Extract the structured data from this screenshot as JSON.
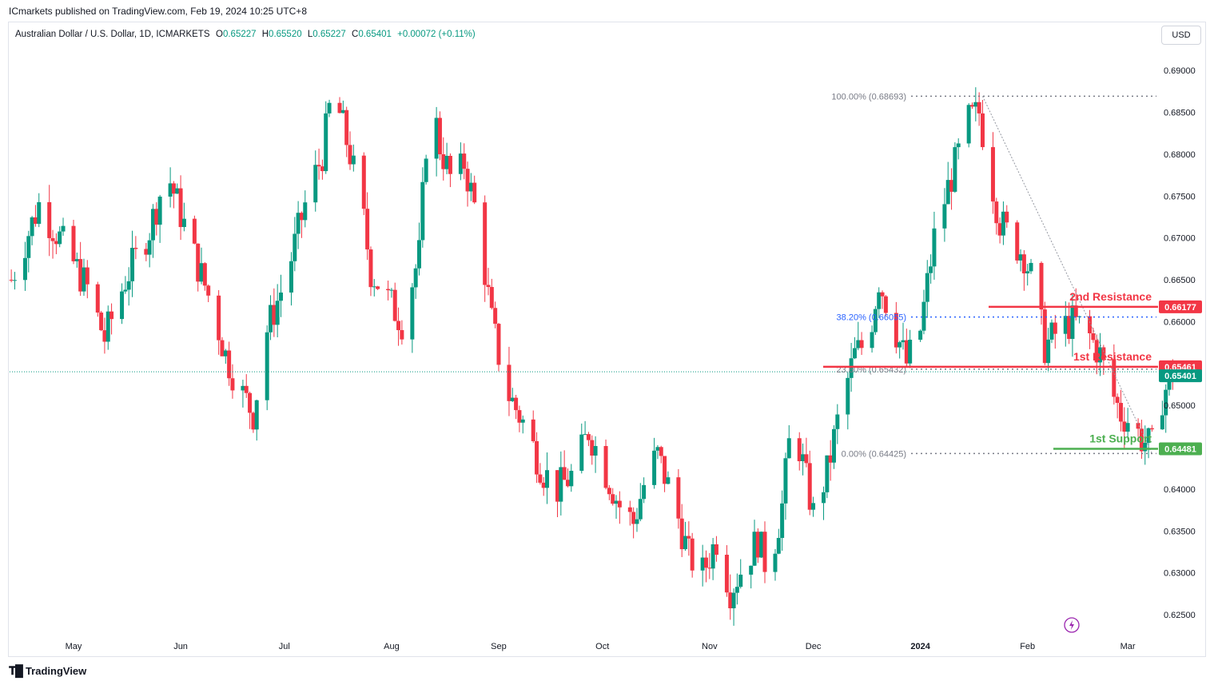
{
  "publisher": {
    "text": "ICmarkets published on TradingView.com, Feb 19, 2024 10:25 UTC+8"
  },
  "header": {
    "symbol": "Australian Dollar / U.S. Dollar, 1D, ICMARKETS",
    "o_label": "O",
    "o_value": "0.65227",
    "h_label": "H",
    "h_value": "0.65520",
    "l_label": "L",
    "l_value": "0.65227",
    "c_label": "C",
    "c_value": "0.65401",
    "change": "+0.00072 (+0.11%)",
    "currency": "USD"
  },
  "footer": {
    "brand": "TradingView",
    "brand_icon": "tradingview-logo-icon"
  },
  "chart_data": {
    "type": "candlestick",
    "symbol": "AUDUSD",
    "timeframe": "1D",
    "ylim": [
      0.623,
      0.6925
    ],
    "y_ticks": [
      "0.69000",
      "0.68500",
      "0.68000",
      "0.67500",
      "0.67000",
      "0.66500",
      "0.66000",
      "0.65500",
      "0.65000",
      "0.64500",
      "0.64000",
      "0.63500",
      "0.63000",
      "0.62500"
    ],
    "x_labels": [
      {
        "label": "May",
        "day": 0
      },
      {
        "label": "Jun",
        "day": 31
      },
      {
        "label": "Jul",
        "day": 61
      },
      {
        "label": "Aug",
        "day": 92
      },
      {
        "label": "Sep",
        "day": 123
      },
      {
        "label": "Oct",
        "day": 153
      },
      {
        "label": "Nov",
        "day": 184
      },
      {
        "label": "Dec",
        "day": 214
      },
      {
        "label": "2024",
        "day": 245,
        "bold": true
      },
      {
        "label": "Feb",
        "day": 276
      },
      {
        "label": "Mar",
        "day": 305
      }
    ],
    "x_range_days": [
      -18,
      318
    ],
    "anchors": [
      {
        "day": -18,
        "price": 0.665
      },
      {
        "day": -10,
        "price": 0.674
      },
      {
        "day": -4,
        "price": 0.67
      },
      {
        "day": 4,
        "price": 0.664
      },
      {
        "day": 9,
        "price": 0.658
      },
      {
        "day": 15,
        "price": 0.665
      },
      {
        "day": 22,
        "price": 0.671
      },
      {
        "day": 27,
        "price": 0.678
      },
      {
        "day": 34,
        "price": 0.669
      },
      {
        "day": 40,
        "price": 0.662
      },
      {
        "day": 44,
        "price": 0.656
      },
      {
        "day": 48,
        "price": 0.652
      },
      {
        "day": 52,
        "price": 0.649
      },
      {
        "day": 56,
        "price": 0.659
      },
      {
        "day": 62,
        "price": 0.666
      },
      {
        "day": 67,
        "price": 0.674
      },
      {
        "day": 72,
        "price": 0.68
      },
      {
        "day": 75,
        "price": 0.688
      },
      {
        "day": 80,
        "price": 0.68
      },
      {
        "day": 84,
        "price": 0.672
      },
      {
        "day": 86,
        "price": 0.666
      },
      {
        "day": 92,
        "price": 0.662
      },
      {
        "day": 95,
        "price": 0.66
      },
      {
        "day": 100,
        "price": 0.668
      },
      {
        "day": 103,
        "price": 0.688
      },
      {
        "day": 106,
        "price": 0.681
      },
      {
        "day": 110,
        "price": 0.676
      },
      {
        "day": 113,
        "price": 0.679
      },
      {
        "day": 117,
        "price": 0.672
      },
      {
        "day": 121,
        "price": 0.66
      },
      {
        "day": 125,
        "price": 0.652
      },
      {
        "day": 130,
        "price": 0.648
      },
      {
        "day": 136,
        "price": 0.642
      },
      {
        "day": 140,
        "price": 0.64
      },
      {
        "day": 145,
        "price": 0.642
      },
      {
        "day": 149,
        "price": 0.647
      },
      {
        "day": 154,
        "price": 0.642
      },
      {
        "day": 158,
        "price": 0.638
      },
      {
        "day": 162,
        "price": 0.636
      },
      {
        "day": 166,
        "price": 0.642
      },
      {
        "day": 169,
        "price": 0.644
      },
      {
        "day": 174,
        "price": 0.638
      },
      {
        "day": 178,
        "price": 0.632
      },
      {
        "day": 182,
        "price": 0.63
      },
      {
        "day": 186,
        "price": 0.634
      },
      {
        "day": 190,
        "price": 0.628
      },
      {
        "day": 194,
        "price": 0.631
      },
      {
        "day": 198,
        "price": 0.634
      },
      {
        "day": 201,
        "price": 0.63
      },
      {
        "day": 205,
        "price": 0.638
      },
      {
        "day": 208,
        "price": 0.649
      },
      {
        "day": 211,
        "price": 0.643
      },
      {
        "day": 214,
        "price": 0.637
      },
      {
        "day": 218,
        "price": 0.642
      },
      {
        "day": 222,
        "price": 0.65
      },
      {
        "day": 226,
        "price": 0.656
      },
      {
        "day": 230,
        "price": 0.658
      },
      {
        "day": 233,
        "price": 0.665
      },
      {
        "day": 237,
        "price": 0.66
      },
      {
        "day": 241,
        "price": 0.655
      },
      {
        "day": 245,
        "price": 0.659
      },
      {
        "day": 249,
        "price": 0.67
      },
      {
        "day": 253,
        "price": 0.676
      },
      {
        "day": 256,
        "price": 0.68
      },
      {
        "day": 259,
        "price": 0.684
      },
      {
        "day": 262,
        "price": 0.685
      },
      {
        "day": 265,
        "price": 0.678
      },
      {
        "day": 268,
        "price": 0.672
      },
      {
        "day": 271,
        "price": 0.67
      },
      {
        "day": 275,
        "price": 0.668
      },
      {
        "day": 278,
        "price": 0.664
      },
      {
        "day": 281,
        "price": 0.657
      },
      {
        "day": 285,
        "price": 0.659
      },
      {
        "day": 289,
        "price": 0.66
      },
      {
        "day": 293,
        "price": 0.659
      },
      {
        "day": 297,
        "price": 0.656
      },
      {
        "day": 300,
        "price": 0.652
      },
      {
        "day": 303,
        "price": 0.649
      },
      {
        "day": 306,
        "price": 0.648
      },
      {
        "day": 309,
        "price": 0.646
      },
      {
        "day": 312,
        "price": 0.645
      },
      {
        "day": 315,
        "price": 0.651
      },
      {
        "day": 318,
        "price": 0.654
      }
    ],
    "last_price": 0.65401,
    "fibonacci": [
      {
        "label": "100.00% (0.68693)",
        "price": 0.68693,
        "color": "#787b86"
      },
      {
        "label": "38.20% (0.66055)",
        "price": 0.66055,
        "color": "#2962ff"
      },
      {
        "label": "23.60% (0.65432)",
        "price": 0.65432,
        "color": "#787b86"
      },
      {
        "label": "0.00% (0.64425)",
        "price": 0.64425,
        "color": "#787b86"
      }
    ],
    "levels": [
      {
        "label": "2nd Resistance",
        "price": 0.66177,
        "price_label": "0.66177",
        "color": "#f23645"
      },
      {
        "label": "1st Resistance",
        "price": 0.65461,
        "price_label": "0.65461",
        "color": "#f23645"
      },
      {
        "label": "1st Support",
        "price": 0.64481,
        "price_label": "0.64481",
        "color": "#4caf50"
      }
    ],
    "last_price_label": "0.65401",
    "up_color": "#089981",
    "down_color": "#f23645",
    "axis_text_color": "#131722"
  }
}
